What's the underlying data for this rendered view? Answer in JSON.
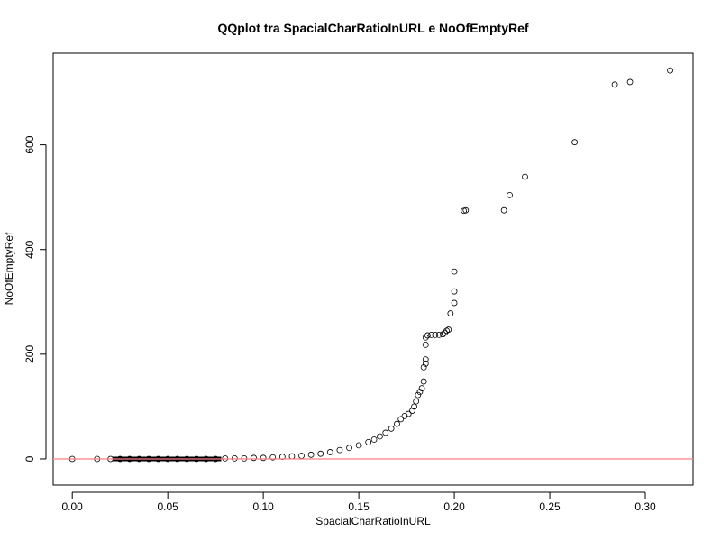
{
  "chart_data": {
    "type": "scatter",
    "title": "QQplot tra SpacialCharRatioInURL e NoOfEmptyRef",
    "xlabel": "SpacialCharRatioInURL",
    "ylabel": "NoOfEmptyRef",
    "xlim": [
      -0.01,
      0.325
    ],
    "ylim": [
      -50,
      775
    ],
    "xticks": [
      "0.00",
      "0.05",
      "0.10",
      "0.15",
      "0.20",
      "0.25",
      "0.30"
    ],
    "yticks": [
      "0",
      "200",
      "400",
      "600"
    ],
    "grid": false,
    "marker": "open-circle",
    "reference_line": {
      "y": 0,
      "color": "#ff7f7f"
    },
    "series": [
      {
        "points": [
          [
            0.0,
            0
          ],
          [
            0.013,
            0
          ],
          [
            0.02,
            0
          ],
          [
            0.025,
            0
          ],
          [
            0.03,
            0
          ],
          [
            0.035,
            0
          ],
          [
            0.04,
            0
          ],
          [
            0.045,
            0
          ],
          [
            0.05,
            0
          ],
          [
            0.055,
            0
          ],
          [
            0.06,
            0
          ],
          [
            0.065,
            0
          ],
          [
            0.07,
            0
          ],
          [
            0.075,
            0
          ],
          [
            0.08,
            1
          ],
          [
            0.085,
            1
          ],
          [
            0.09,
            1
          ],
          [
            0.095,
            2
          ],
          [
            0.1,
            2
          ],
          [
            0.105,
            3
          ],
          [
            0.11,
            4
          ],
          [
            0.115,
            5
          ],
          [
            0.12,
            6
          ],
          [
            0.125,
            8
          ],
          [
            0.13,
            10
          ],
          [
            0.135,
            13
          ],
          [
            0.14,
            17
          ],
          [
            0.145,
            21
          ],
          [
            0.15,
            26
          ],
          [
            0.155,
            32
          ],
          [
            0.158,
            37
          ],
          [
            0.161,
            43
          ],
          [
            0.164,
            50
          ],
          [
            0.167,
            58
          ],
          [
            0.17,
            67
          ],
          [
            0.172,
            76
          ],
          [
            0.174,
            82
          ],
          [
            0.176,
            86
          ],
          [
            0.178,
            92
          ],
          [
            0.179,
            100
          ],
          [
            0.18,
            110
          ],
          [
            0.181,
            122
          ],
          [
            0.182,
            128
          ],
          [
            0.183,
            135
          ],
          [
            0.184,
            148
          ],
          [
            0.184,
            175
          ],
          [
            0.185,
            182
          ],
          [
            0.185,
            190
          ],
          [
            0.185,
            218
          ],
          [
            0.185,
            232
          ],
          [
            0.186,
            236
          ],
          [
            0.188,
            237
          ],
          [
            0.19,
            237
          ],
          [
            0.192,
            237
          ],
          [
            0.194,
            238
          ],
          [
            0.195,
            241
          ],
          [
            0.196,
            245
          ],
          [
            0.197,
            247
          ],
          [
            0.198,
            278
          ],
          [
            0.2,
            298
          ],
          [
            0.2,
            320
          ],
          [
            0.2,
            358
          ],
          [
            0.205,
            474
          ],
          [
            0.206,
            475
          ],
          [
            0.226,
            475
          ],
          [
            0.229,
            504
          ],
          [
            0.237,
            539
          ],
          [
            0.263,
            605
          ],
          [
            0.284,
            715
          ],
          [
            0.292,
            720
          ],
          [
            0.313,
            742
          ]
        ]
      }
    ]
  }
}
